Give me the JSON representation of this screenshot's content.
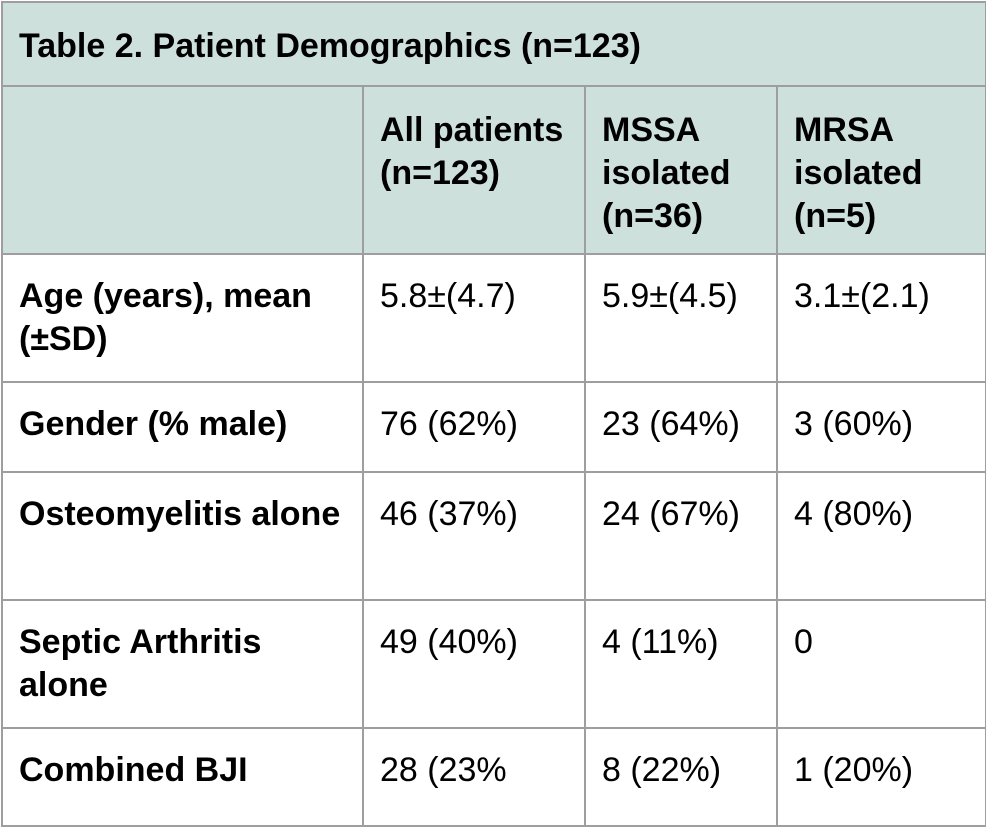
{
  "table": {
    "title": "Table 2. Patient Demographics (n=123)",
    "headers": [
      "",
      "All patients (n=123)",
      "MSSA isolated (n=36)",
      "MRSA isolated (n=5)"
    ],
    "rows": [
      {
        "label": "Age (years), mean (±SD)",
        "values": [
          "5.8±(4.7)",
          "5.9±(4.5)",
          "3.1±(2.1)"
        ]
      },
      {
        "label": "Gender (% male)",
        "values": [
          "76 (62%)",
          "23 (64%)",
          "3 (60%)"
        ]
      },
      {
        "label": "Osteomyelitis alone",
        "values": [
          "46 (37%)",
          "24 (67%)",
          "4 (80%)"
        ]
      },
      {
        "label": "Septic Arthritis alone",
        "values": [
          "49 (40%)",
          "4 (11%)",
          "0"
        ]
      },
      {
        "label": "Combined BJI",
        "values": [
          "28 (23%",
          "8 (22%)",
          "1 (20%)"
        ]
      }
    ]
  },
  "colors": {
    "header_bg": "#cde0dc",
    "border": "#9e9e9e",
    "text": "#000000"
  }
}
